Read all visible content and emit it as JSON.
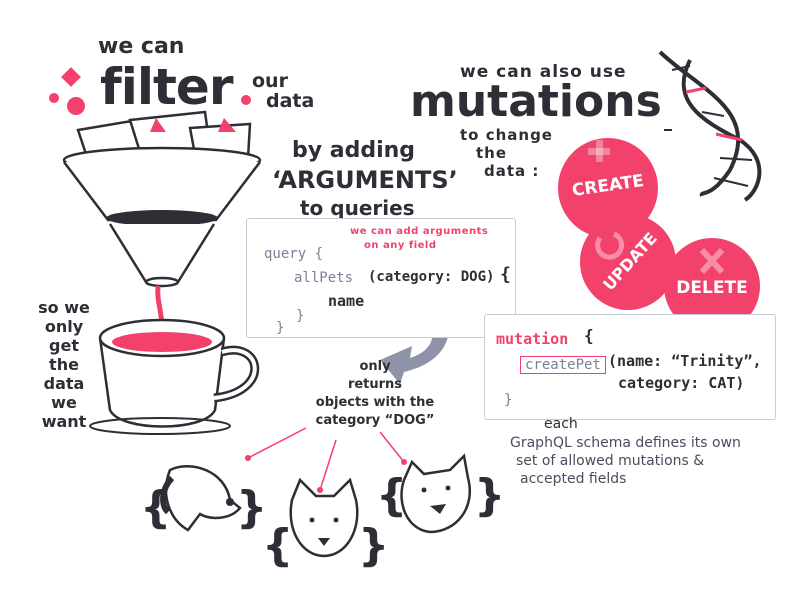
{
  "filter_section": {
    "we_can": "we can",
    "filter_word": "filter",
    "our": "our",
    "data": "data"
  },
  "arguments_section": {
    "by_adding": "by adding",
    "arguments": "‘ARGUMENTS’",
    "to_queries": "to queries"
  },
  "query_code": {
    "annotation_line1": "we can add arguments",
    "annotation_line2": "on any field",
    "query": "query {",
    "allpets": "allPets",
    "args": "(category: DOG)",
    "open_brace": "{",
    "name": "name",
    "close_inner": "}",
    "close_outer": "}"
  },
  "so_we_only": {
    "line1": "so we",
    "line2": "only",
    "line3": "get",
    "line4": "the",
    "line5": "data",
    "line6": "we",
    "line7": "want"
  },
  "only_returns": {
    "line1": "only",
    "line2": "returns",
    "line3": "objects with the",
    "line4": "category “DOG”"
  },
  "mutations_section": {
    "we_can_also_use": "we can also use",
    "mutations": "mutations",
    "to_change": "to change",
    "the": "the",
    "data": "data :"
  },
  "crud_buttons": {
    "create": "CREATE",
    "update": "UPDATE",
    "delete": "DELETE"
  },
  "mutation_code": {
    "mutation": "mutation",
    "open_brace": "{",
    "createpet": "createPet",
    "args_line1": "(name: “Trinity”,",
    "args_line2": "category: CAT)",
    "close": "}"
  },
  "schema_note": {
    "each": "each",
    "line1": "GraphQL schema defines its own",
    "line2": "set of allowed mutations &",
    "line3": "accepted fields"
  },
  "colors": {
    "accent": "#f2416b",
    "ink": "#2d2e36",
    "code_gray": "#7a8099",
    "arrow_gray": "#8e93a8"
  },
  "icons": [
    "funnel-icon",
    "coffee-cup-icon",
    "dna-helix-icon",
    "dog-head-icon",
    "plus-icon",
    "refresh-icon",
    "cross-icon",
    "down-arrow-icon"
  ]
}
